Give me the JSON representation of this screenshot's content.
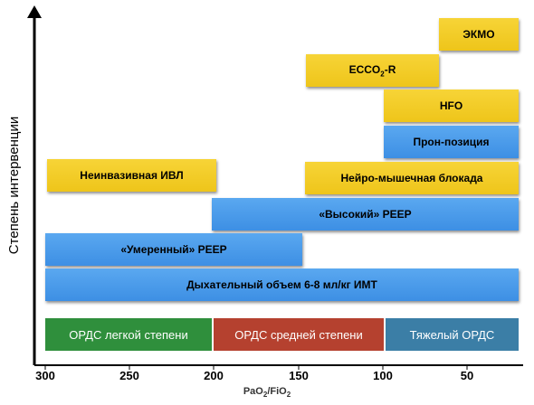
{
  "y_axis_label": "Степень интервенции",
  "x_axis": {
    "label_main": "PaO",
    "label_sub1": "2",
    "label_sep": "/FiO",
    "label_sub2": "2",
    "ticks": [
      "300",
      "250",
      "200",
      "150",
      "100",
      "50"
    ]
  },
  "severity": {
    "mild": "ОРДС легкой степени",
    "moderate": "ОРДС средней степени",
    "severe": "Тяжелый ОРДС"
  },
  "interventions": {
    "ecmo": "ЭКМО",
    "ecco2r_pre": "ECCO",
    "ecco2r_sub": "2",
    "ecco2r_post": "-R",
    "hfo": "HFO",
    "prone": "Прон-позиция",
    "niv": "Неинвазивная ИВЛ",
    "nmb": "Нейро-мышечная блокада",
    "high_peep": "«Высокий» PEEP",
    "moderate_peep": "«Умеренный» PEEP",
    "tidal_volume": "Дыхательный объем 6-8 мл/кг ИМТ"
  },
  "colors": {
    "blue": "#4b9cec",
    "yellow": "#f2cb24",
    "mild": "#2f8f3c",
    "moderate": "#b5412f",
    "severe": "#3b7ea6"
  }
}
